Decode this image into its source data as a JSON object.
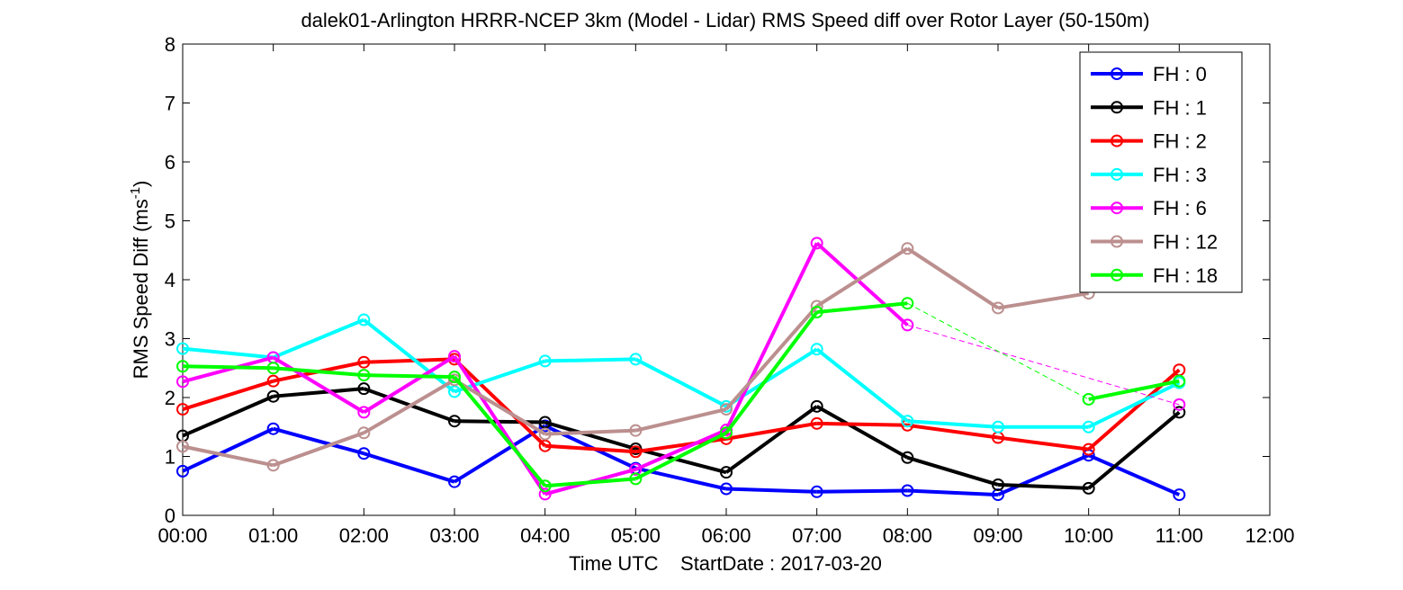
{
  "chart_data": {
    "type": "line",
    "title": "dalek01-Arlington HRRR-NCEP 3km (Model - Lidar) RMS Speed diff over Rotor Layer (50-150m)",
    "xlabel": "Time UTC    StartDate : 2017-03-20",
    "ylabel_main": "RMS Speed Diff (ms",
    "ylabel_sup": "-1",
    "ylabel_close": ")",
    "x_ticks": [
      "00:00",
      "01:00",
      "02:00",
      "03:00",
      "04:00",
      "05:00",
      "06:00",
      "07:00",
      "08:00",
      "09:00",
      "10:00",
      "11:00",
      "12:00"
    ],
    "y_ticks": [
      "0",
      "1",
      "2",
      "3",
      "4",
      "5",
      "6",
      "7",
      "8"
    ],
    "xlim": [
      0,
      12
    ],
    "ylim": [
      0,
      8
    ],
    "grid": false,
    "legend_position": "top-right",
    "series": [
      {
        "name": "FH : 0",
        "color": "#0000ff",
        "x": [
          0,
          1,
          2,
          3,
          4,
          5,
          6,
          7,
          8,
          9,
          10,
          11
        ],
        "y": [
          0.75,
          1.47,
          1.05,
          0.57,
          1.52,
          0.8,
          0.45,
          0.4,
          0.42,
          0.35,
          1.02,
          0.35
        ]
      },
      {
        "name": "FH : 1",
        "color": "#000000",
        "x": [
          0,
          1,
          2,
          3,
          4,
          5,
          6,
          7,
          8,
          9,
          10,
          11
        ],
        "y": [
          1.35,
          2.02,
          2.15,
          1.6,
          1.58,
          1.13,
          0.73,
          1.85,
          0.98,
          0.52,
          0.46,
          1.75
        ]
      },
      {
        "name": "FH : 2",
        "color": "#ff0000",
        "x": [
          0,
          1,
          2,
          3,
          4,
          5,
          6,
          7,
          8,
          9,
          10,
          11
        ],
        "y": [
          1.8,
          2.28,
          2.6,
          2.65,
          1.18,
          1.08,
          1.3,
          1.56,
          1.53,
          1.32,
          1.12,
          2.47
        ]
      },
      {
        "name": "FH : 3",
        "color": "#00ffff",
        "x": [
          0,
          1,
          2,
          3,
          4,
          5,
          6,
          7,
          8,
          9,
          10,
          11
        ],
        "y": [
          2.83,
          2.68,
          3.32,
          2.1,
          2.62,
          2.65,
          1.85,
          2.82,
          1.6,
          1.5,
          1.5,
          2.25
        ]
      },
      {
        "name": "FH : 6",
        "color": "#ff00ff",
        "x": [
          0,
          1,
          2,
          3,
          4,
          5,
          6,
          7,
          8,
          11
        ],
        "y": [
          2.27,
          2.68,
          1.75,
          2.7,
          0.36,
          0.78,
          1.45,
          4.62,
          3.23,
          1.88
        ]
      },
      {
        "name": "FH : 12",
        "color": "#bc8f8f",
        "x": [
          0,
          1,
          2,
          3,
          4,
          5,
          6,
          7,
          8,
          9,
          10
        ],
        "y": [
          1.17,
          0.85,
          1.4,
          2.3,
          1.38,
          1.44,
          1.8,
          3.55,
          4.53,
          3.52,
          3.77
        ]
      },
      {
        "name": "FH : 18",
        "color": "#00ff00",
        "x": [
          0,
          1,
          2,
          3,
          4,
          5,
          6,
          7,
          8,
          10,
          11
        ],
        "y": [
          2.53,
          2.5,
          2.38,
          2.35,
          0.5,
          0.62,
          1.4,
          3.45,
          3.6,
          1.97,
          2.28
        ]
      }
    ]
  }
}
